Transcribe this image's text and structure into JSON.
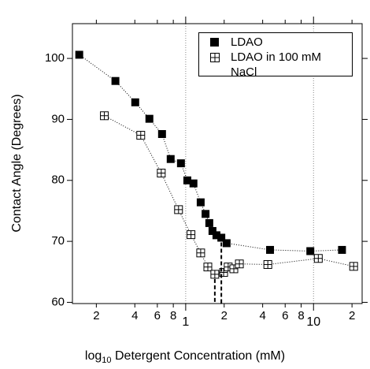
{
  "chart_data": {
    "type": "scatter",
    "ylabel": "Contact Angle (Degrees)",
    "xlabel": {
      "base": "log",
      "subscript": "10",
      "text": "Detergent Concentration (mM)"
    },
    "xscale": "log",
    "xlim": [
      0.13,
      24
    ],
    "ylim": [
      59.8,
      105.7
    ],
    "xticks": [
      {
        "value": 0.2,
        "label": "2"
      },
      {
        "value": 0.4,
        "label": "4"
      },
      {
        "value": 0.6,
        "label": "6"
      },
      {
        "value": 0.8,
        "label": "8"
      },
      1,
      {
        "value": 2,
        "label": "2"
      },
      {
        "value": 4,
        "label": "4"
      },
      {
        "value": 6,
        "label": "6"
      },
      {
        "value": 8,
        "label": "8"
      },
      10,
      {
        "value": 20,
        "label": "2"
      }
    ],
    "yticks": [
      60,
      70,
      80,
      90,
      100
    ],
    "vlines": [
      1,
      10
    ],
    "legend": "upper right",
    "series": [
      {
        "name": "LDAO",
        "color": "#000000",
        "marker": "filled-square",
        "x": [
          0.147,
          0.282,
          0.403,
          0.52,
          0.653,
          0.763,
          0.918,
          1.03,
          1.15,
          1.31,
          1.43,
          1.53,
          1.62,
          1.74,
          1.9,
          2.09,
          4.57,
          9.44,
          16.7
        ],
        "values": [
          100.6,
          96.3,
          92.8,
          90.1,
          87.6,
          83.5,
          82.8,
          80,
          79.5,
          76.4,
          74.5,
          73.0,
          71.7,
          71.0,
          70.6,
          69.7,
          68.6,
          68.4,
          68.6
        ]
      },
      {
        "name": "LDAO in 100 mM NaCl",
        "color": "#000000",
        "marker": "open-crossed-square",
        "x": [
          0.231,
          0.445,
          0.644,
          0.879,
          1.1,
          1.31,
          1.49,
          1.69,
          1.98,
          2.15,
          2.38,
          2.63,
          4.39,
          10.9,
          20.6
        ],
        "values": [
          90.6,
          87.4,
          81.2,
          75.2,
          71.1,
          68.1,
          65.8,
          64.6,
          64.9,
          65.8,
          65.5,
          66.3,
          66.2,
          67.2,
          65.9
        ]
      }
    ]
  }
}
